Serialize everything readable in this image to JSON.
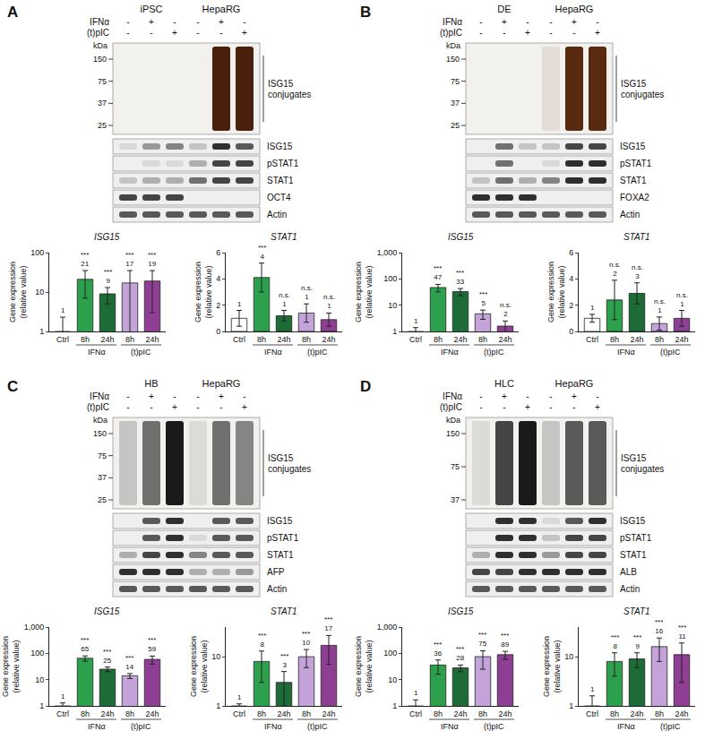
{
  "chart_data": [
    {
      "type": "bar",
      "title": "ISG15",
      "y_label": "Gene expression (relative value)",
      "categories": [
        "Ctrl",
        "8h",
        "24h",
        "8h",
        "24h"
      ],
      "groups": [
        {
          "label": "IFNα",
          "members": [
            1,
            2
          ]
        },
        {
          "label": "(t)pIC",
          "members": [
            3,
            4
          ]
        }
      ],
      "values": [
        1,
        21,
        9,
        17,
        19
      ],
      "error": [
        1.3,
        14,
        4,
        18,
        16
      ],
      "value_labels": [
        "1",
        "21",
        "9",
        "17",
        "19"
      ],
      "significance": [
        null,
        "***",
        "***",
        "***",
        "***"
      ],
      "colors": [
        "#ffffff",
        "#2ca04c",
        "#1d6b36",
        "#c3a3d9",
        "#8e3f94"
      ],
      "log": "y",
      "ylim": [
        1,
        100
      ],
      "yticks": [
        1,
        10,
        100
      ],
      "data_labels": true
    },
    {
      "type": "bar",
      "title": "STAT1",
      "y_label": "Gene expression (relative value)",
      "categories": [
        "Ctrl",
        "8h",
        "24h",
        "8h",
        "24h"
      ],
      "groups": [
        {
          "label": "IFNα",
          "members": [
            1,
            2
          ]
        },
        {
          "label": "(t)pIC",
          "members": [
            3,
            4
          ]
        }
      ],
      "values": [
        1,
        4.1,
        1.2,
        1.4,
        0.9
      ],
      "error": [
        0.6,
        1.1,
        0.4,
        0.7,
        0.5
      ],
      "value_labels": [
        "1",
        "4",
        "1",
        "1",
        "1"
      ],
      "significance": [
        null,
        "***",
        "n.s.",
        "n.s.",
        "n.s."
      ],
      "colors": [
        "#ffffff",
        "#2ca04c",
        "#1d6b36",
        "#c3a3d9",
        "#8e3f94"
      ],
      "ylim": [
        0,
        6
      ],
      "yticks": [
        0,
        2,
        4,
        6
      ],
      "data_labels": true
    },
    {
      "type": "bar",
      "title": "ISG15",
      "y_label": "Gene expression (relative value)",
      "categories": [
        "Ctrl",
        "8h",
        "24h",
        "8h",
        "24h"
      ],
      "groups": [
        {
          "label": "IFNα",
          "members": [
            1,
            2
          ]
        },
        {
          "label": "(t)pIC",
          "members": [
            3,
            4
          ]
        }
      ],
      "values": [
        1,
        47,
        33,
        4.7,
        1.6
      ],
      "error": [
        0.4,
        15,
        10,
        1.8,
        0.9
      ],
      "value_labels": [
        "1",
        "47",
        "33",
        "5",
        "2"
      ],
      "significance": [
        null,
        "***",
        "***",
        "***",
        "n.s."
      ],
      "colors": [
        "#ffffff",
        "#2ca04c",
        "#1d6b36",
        "#c3a3d9",
        "#8e3f94"
      ],
      "log": "y",
      "ylim": [
        1,
        1000
      ],
      "yticks": [
        1,
        10,
        100,
        {
          "value": 1000,
          "label": "1,000"
        }
      ],
      "data_labels": true
    },
    {
      "type": "bar",
      "title": "STAT1",
      "y_label": "Gene expression (relative value)",
      "categories": [
        "Ctrl",
        "8h",
        "24h",
        "8h",
        "24h"
      ],
      "groups": [
        {
          "label": "IFNα",
          "members": [
            1,
            2
          ]
        },
        {
          "label": "(t)pIC",
          "members": [
            3,
            4
          ]
        }
      ],
      "values": [
        1,
        2.4,
        2.9,
        0.6,
        1.0
      ],
      "error": [
        0.3,
        1.5,
        0.8,
        0.5,
        0.6
      ],
      "value_labels": [
        "1",
        "2",
        "3",
        "1",
        "1"
      ],
      "significance": [
        null,
        "n.s.",
        "n.s.",
        "n.s.",
        "n.s."
      ],
      "colors": [
        "#ffffff",
        "#2ca04c",
        "#1d6b36",
        "#c3a3d9",
        "#8e3f94"
      ],
      "ylim": [
        0,
        6
      ],
      "yticks": [
        0,
        2,
        4,
        6
      ],
      "data_labels": true
    },
    {
      "type": "bar",
      "title": "ISG15",
      "y_label": "Gene expression (relative value)",
      "categories": [
        "Ctrl",
        "8h",
        "24h",
        "8h",
        "24h"
      ],
      "groups": [
        {
          "label": "IFNα",
          "members": [
            1,
            2
          ]
        },
        {
          "label": "(t)pIC",
          "members": [
            3,
            4
          ]
        }
      ],
      "values": [
        1,
        65,
        25,
        14,
        59
      ],
      "error": [
        0.3,
        15,
        5,
        3,
        20
      ],
      "value_labels": [
        "1",
        "65",
        "25",
        "14",
        "59"
      ],
      "significance": [
        null,
        "***",
        "***",
        "***",
        "***"
      ],
      "colors": [
        "#ffffff",
        "#2ca04c",
        "#1d6b36",
        "#c3a3d9",
        "#8e3f94"
      ],
      "log": "y",
      "ylim": [
        1,
        1000
      ],
      "yticks": [
        1,
        10,
        100,
        {
          "value": 1000,
          "label": "1,000"
        }
      ],
      "data_labels": true
    },
    {
      "type": "bar",
      "title": "STAT1",
      "y_label": "Gene expression (relative value)",
      "categories": [
        "Ctrl",
        "8h",
        "24h",
        "8h",
        "24h"
      ],
      "groups": [
        {
          "label": "IFNα",
          "members": [
            1,
            2
          ]
        },
        {
          "label": "(t)pIC",
          "members": [
            3,
            4
          ]
        }
      ],
      "values": [
        1,
        8,
        3,
        10,
        17
      ],
      "error": [
        0.1,
        5,
        2,
        4,
        10
      ],
      "value_labels": [
        "1",
        "8",
        "3",
        "10",
        "17"
      ],
      "significance": [
        null,
        "***",
        "***",
        "***",
        "***"
      ],
      "colors": [
        "#ffffff",
        "#2ca04c",
        "#1d6b36",
        "#c3a3d9",
        "#8e3f94"
      ],
      "log": "y",
      "ylim": [
        1,
        40
      ],
      "yticks": [
        1,
        10
      ],
      "data_labels": true
    },
    {
      "type": "bar",
      "title": "ISG15",
      "y_label": "Gene expression (relative value)",
      "categories": [
        "Ctrl",
        "8h",
        "24h",
        "8h",
        "24h"
      ],
      "groups": [
        {
          "label": "IFNα",
          "members": [
            1,
            2
          ]
        },
        {
          "label": "(t)pIC",
          "members": [
            3,
            4
          ]
        }
      ],
      "values": [
        1,
        36,
        28,
        75,
        89
      ],
      "error": [
        0.7,
        20,
        8,
        50,
        30
      ],
      "value_labels": [
        "1",
        "36",
        "28",
        "75",
        "89"
      ],
      "significance": [
        null,
        "***",
        "***",
        "***",
        "***"
      ],
      "colors": [
        "#ffffff",
        "#2ca04c",
        "#1d6b36",
        "#c3a3d9",
        "#8e3f94"
      ],
      "log": "y",
      "ylim": [
        1,
        1000
      ],
      "yticks": [
        1,
        10,
        100,
        {
          "value": 1000,
          "label": "1,000"
        }
      ],
      "data_labels": true
    },
    {
      "type": "bar",
      "title": "STAT1",
      "y_label": "Gene expression (relative value)",
      "categories": [
        "Ctrl",
        "8h",
        "24h",
        "8h",
        "24h"
      ],
      "groups": [
        {
          "label": "IFNα",
          "members": [
            1,
            2
          ]
        },
        {
          "label": "(t)pIC",
          "members": [
            3,
            4
          ]
        }
      ],
      "values": [
        1,
        8,
        9,
        16,
        11
      ],
      "error": [
        0.6,
        4,
        3,
        8,
        8
      ],
      "value_labels": [
        "1",
        "8",
        "9",
        "16",
        "11"
      ],
      "significance": [
        null,
        "***",
        "***",
        "***",
        "***"
      ],
      "colors": [
        "#ffffff",
        "#2ca04c",
        "#1d6b36",
        "#c3a3d9",
        "#8e3f94"
      ],
      "log": "y",
      "ylim": [
        1,
        40
      ],
      "yticks": [
        1,
        10
      ],
      "data_labels": true
    }
  ],
  "panels": [
    {
      "label": "A",
      "cells": [
        "iPSC",
        "HepaRG"
      ],
      "treatments": [
        {
          "name": "IFNα",
          "marks": [
            "-",
            "+",
            "-",
            "-",
            "+",
            "-"
          ]
        },
        {
          "name": "(t)pIC",
          "marks": [
            "-",
            "-",
            "+",
            "-",
            "-",
            "+"
          ]
        }
      ],
      "conjugates": {
        "label": "ISG15 conjugates",
        "unit": "kDa",
        "markers": [
          150,
          75,
          37,
          25
        ],
        "color": "#4a200c",
        "intensity": [
          0,
          0,
          0,
          0,
          1,
          1
        ]
      },
      "blots": [
        {
          "name": "ISG15",
          "intensity": [
            0.1,
            0.4,
            0.5,
            0.2,
            0.9,
            0.7
          ]
        },
        {
          "name": "pSTAT1",
          "intensity": [
            0,
            0.1,
            0.1,
            0.3,
            0.8,
            0.8
          ]
        },
        {
          "name": "STAT1",
          "intensity": [
            0.2,
            0.3,
            0.3,
            0.6,
            0.8,
            0.8
          ]
        },
        {
          "name": "OCT4",
          "intensity": [
            0.8,
            0.8,
            0.8,
            0,
            0,
            0
          ]
        },
        {
          "name": "Actin",
          "intensity": [
            0.7,
            0.7,
            0.7,
            0.7,
            0.7,
            0.7
          ]
        }
      ]
    },
    {
      "label": "B",
      "cells": [
        "DE",
        "HepaRG"
      ],
      "treatments": [
        {
          "name": "IFNα",
          "marks": [
            "-",
            "+",
            "-",
            "-",
            "+",
            "-"
          ]
        },
        {
          "name": "(t)pIC",
          "marks": [
            "-",
            "-",
            "+",
            "-",
            "-",
            "+"
          ]
        }
      ],
      "conjugates": {
        "label": "ISG15 conjugates",
        "unit": "kDa",
        "markers": [
          150,
          75,
          37,
          25
        ],
        "color": "#5a2a10",
        "intensity": [
          0,
          0,
          0,
          0.1,
          1,
          1
        ]
      },
      "blots": [
        {
          "name": "ISG15",
          "intensity": [
            0,
            0.6,
            0.2,
            0.2,
            0.8,
            0.8
          ]
        },
        {
          "name": "pSTAT1",
          "intensity": [
            0,
            0.6,
            0,
            0.1,
            0.9,
            0.9
          ]
        },
        {
          "name": "STAT1",
          "intensity": [
            0.2,
            0.6,
            0.3,
            0.5,
            0.9,
            0.9
          ]
        },
        {
          "name": "FOXA2",
          "intensity": [
            0.9,
            0.9,
            0.9,
            0,
            0,
            0
          ]
        },
        {
          "name": "Actin",
          "intensity": [
            0.7,
            0.7,
            0.7,
            0.7,
            0.7,
            0.7
          ]
        }
      ]
    },
    {
      "label": "C",
      "cells": [
        "HB",
        "HepaRG"
      ],
      "treatments": [
        {
          "name": "IFNα",
          "marks": [
            "-",
            "+",
            "-",
            "-",
            "+",
            "-"
          ]
        },
        {
          "name": "(t)pIC",
          "marks": [
            "-",
            "-",
            "+",
            "-",
            "-",
            "+"
          ]
        }
      ],
      "conjugates": {
        "label": "ISG15 conjugates",
        "unit": "kDa",
        "markers": [
          150,
          75,
          37,
          25
        ],
        "color": "#1a1a1a",
        "intensity": [
          0.2,
          0.6,
          1,
          0.1,
          0.6,
          0.5
        ]
      },
      "blots": [
        {
          "name": "ISG15",
          "intensity": [
            0,
            0.7,
            0.9,
            0,
            0.7,
            0.7
          ]
        },
        {
          "name": "pSTAT1",
          "intensity": [
            0,
            0.7,
            0.9,
            0.1,
            0.7,
            0.7
          ]
        },
        {
          "name": "STAT1",
          "intensity": [
            0.3,
            0.8,
            0.9,
            0.5,
            0.7,
            0.7
          ]
        },
        {
          "name": "AFP",
          "intensity": [
            0.9,
            0.9,
            0.9,
            0.3,
            0.3,
            0.4
          ]
        },
        {
          "name": "Actin",
          "intensity": [
            0.7,
            0.7,
            0.7,
            0.7,
            0.7,
            0.7
          ]
        }
      ]
    },
    {
      "label": "D",
      "cells": [
        "HLC",
        "HepaRG"
      ],
      "treatments": [
        {
          "name": "IFNα",
          "marks": [
            "-",
            "+",
            "-",
            "-",
            "+",
            "-"
          ]
        },
        {
          "name": "(t)pIC",
          "marks": [
            "-",
            "-",
            "+",
            "-",
            "-",
            "+"
          ]
        }
      ],
      "conjugates": {
        "label": "ISG15 conjugates",
        "unit": "kDa",
        "markers": [
          150,
          75,
          37
        ],
        "color": "#1a1a1a",
        "intensity": [
          0.1,
          0.8,
          1,
          0.2,
          0.7,
          0.7
        ]
      },
      "blots": [
        {
          "name": "ISG15",
          "intensity": [
            0,
            0.9,
            0.9,
            0.1,
            0.7,
            0.9
          ]
        },
        {
          "name": "pSTAT1",
          "intensity": [
            0,
            0.9,
            0.9,
            0.2,
            0.8,
            0.8
          ]
        },
        {
          "name": "STAT1",
          "intensity": [
            0.3,
            0.9,
            0.9,
            0.4,
            0.8,
            0.8
          ]
        },
        {
          "name": "ALB",
          "intensity": [
            0.8,
            0.8,
            0.9,
            0.9,
            0.9,
            0.9
          ]
        },
        {
          "name": "Actin",
          "intensity": [
            0.7,
            0.7,
            0.7,
            0.7,
            0.7,
            0.7
          ]
        }
      ]
    }
  ]
}
